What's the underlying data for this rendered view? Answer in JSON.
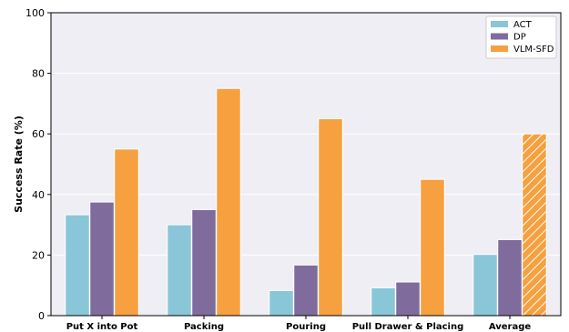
{
  "chart_data": {
    "type": "bar",
    "title": "",
    "xlabel": "",
    "ylabel": "Success Rate (%)",
    "ylim": [
      0,
      100
    ],
    "yticks": [
      0,
      20,
      40,
      60,
      80,
      100
    ],
    "grid": "y",
    "legend_position": "top-right",
    "categories": [
      "Put X into Pot",
      "Packing",
      "Pouring",
      "Pull Drawer & Placing",
      "Average"
    ],
    "series": [
      {
        "name": "ACT",
        "color": "#89c6d8",
        "values": [
          33.3,
          30,
          8.3,
          9.2,
          20.2
        ]
      },
      {
        "name": "DP",
        "color": "#7f6b9c",
        "values": [
          37.5,
          35,
          16.7,
          11.1,
          25.1
        ]
      },
      {
        "name": "VLM-SFD",
        "color": "#f7a03f",
        "values": [
          55,
          75,
          65,
          45,
          60
        ]
      }
    ],
    "hatched": [
      {
        "series": 2,
        "category": 4
      }
    ]
  }
}
